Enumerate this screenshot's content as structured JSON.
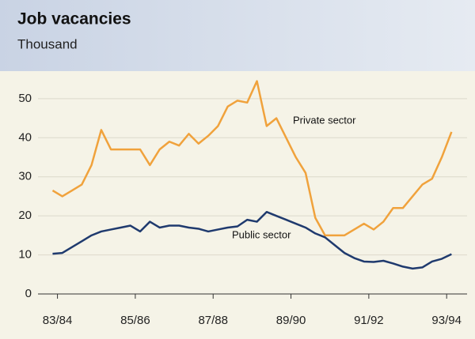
{
  "chart_data": {
    "type": "line",
    "title": "Job vacancies",
    "subtitle": "Thousand",
    "x": [
      0,
      1,
      2,
      3,
      4,
      5,
      6,
      7,
      8,
      9,
      10,
      11,
      12,
      13,
      14,
      15,
      16,
      17,
      18,
      19,
      20,
      21,
      22,
      23,
      24,
      25,
      26,
      27,
      28,
      29,
      30,
      31,
      32,
      33,
      34,
      35,
      36,
      37,
      38,
      39,
      40,
      41
    ],
    "xlim": [
      -1.5,
      42.6
    ],
    "xticks": [
      {
        "value": 0.5,
        "label": "83/84"
      },
      {
        "value": 8.5,
        "label": "85/86"
      },
      {
        "value": 16.5,
        "label": "87/88"
      },
      {
        "value": 24.5,
        "label": "89/90"
      },
      {
        "value": 32.5,
        "label": "91/92"
      },
      {
        "value": 40.5,
        "label": "93/94"
      }
    ],
    "ylim": [
      0,
      52
    ],
    "yticks": [
      0,
      10,
      20,
      30,
      40,
      50
    ],
    "grid": true,
    "series": [
      {
        "name": "Private sector",
        "color": "#f0a23c",
        "values": [
          26.5,
          25,
          26.5,
          28,
          33,
          42,
          37,
          37,
          37,
          37,
          33,
          37,
          39,
          38,
          41,
          38.5,
          40.5,
          43,
          48,
          49.5,
          49,
          54.5,
          43,
          45,
          40,
          35,
          31,
          19.5,
          15,
          15,
          15,
          16.5,
          18,
          16.5,
          18.5,
          22,
          22,
          25,
          28,
          29.5,
          35,
          41.5
        ]
      },
      {
        "name": "Public sector",
        "color": "#1f3a6e",
        "values": [
          10.3,
          10.5,
          12,
          13.5,
          15,
          16,
          16.5,
          17,
          17.5,
          16,
          18.5,
          17,
          17.5,
          17.5,
          17,
          16.7,
          16,
          16.5,
          17,
          17.3,
          19,
          18.5,
          21,
          20,
          19,
          18,
          17,
          15.5,
          14.5,
          12.5,
          10.5,
          9.2,
          8.3,
          8.2,
          8.5,
          7.8,
          7,
          6.5,
          6.8,
          8.3,
          9,
          10.2
        ]
      }
    ]
  }
}
